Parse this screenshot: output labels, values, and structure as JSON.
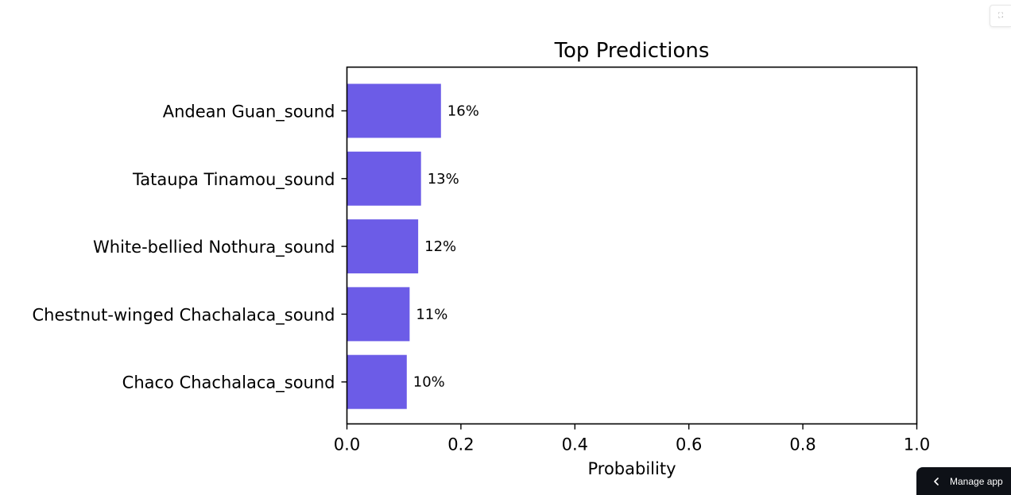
{
  "chart_data": {
    "type": "bar",
    "orientation": "horizontal",
    "title": "Top Predictions",
    "xlabel": "Probability",
    "ylabel": "",
    "categories": [
      "Andean Guan_sound",
      "Tataupa Tinamou_sound",
      "White-bellied Nothura_sound",
      "Chestnut-winged Chachalaca_sound",
      "Chaco Chachalaca_sound"
    ],
    "values": [
      0.165,
      0.13,
      0.125,
      0.11,
      0.105
    ],
    "data_labels": [
      "16%",
      "13%",
      "12%",
      "11%",
      "10%"
    ],
    "xlim": [
      0.0,
      1.0
    ],
    "xticks": [
      "0.0",
      "0.2",
      "0.4",
      "0.6",
      "0.8",
      "1.0"
    ],
    "grid": false,
    "bar_color": "#6c5ce7"
  },
  "ui": {
    "manage_app_label": "Manage app",
    "fullscreen_icon": "expand-icon",
    "manage_icon": "chevron-left-icon"
  }
}
